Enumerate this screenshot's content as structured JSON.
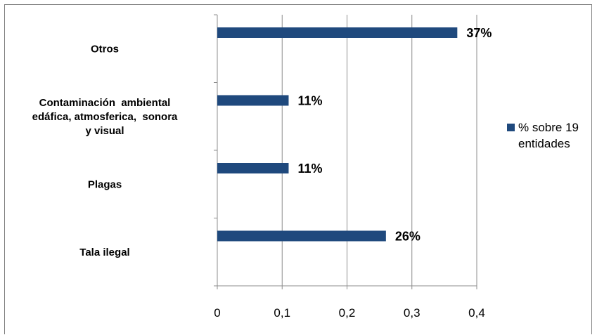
{
  "chart_data": {
    "type": "bar",
    "orientation": "horizontal",
    "categories": [
      [
        "Otros"
      ],
      [
        "Contaminación  ambiental",
        "edáfica, atmosferica,  sonora",
        "y visual"
      ],
      [
        "Plagas"
      ],
      [
        "Tala ilegal"
      ]
    ],
    "series": [
      {
        "name": "% sobre 19 entidades",
        "values": [
          0.37,
          0.11,
          0.11,
          0.26
        ],
        "labels": [
          "37%",
          "11%",
          "11%",
          "26%"
        ],
        "color": "#1F497D"
      }
    ],
    "xlim": [
      0,
      0.4
    ],
    "xticks": [
      0,
      0.1,
      0.2,
      0.3,
      0.4
    ],
    "xtick_labels": [
      "0",
      "0,1",
      "0,2",
      "0,3",
      "0,4"
    ],
    "grid": "vertical",
    "legend": "right"
  }
}
